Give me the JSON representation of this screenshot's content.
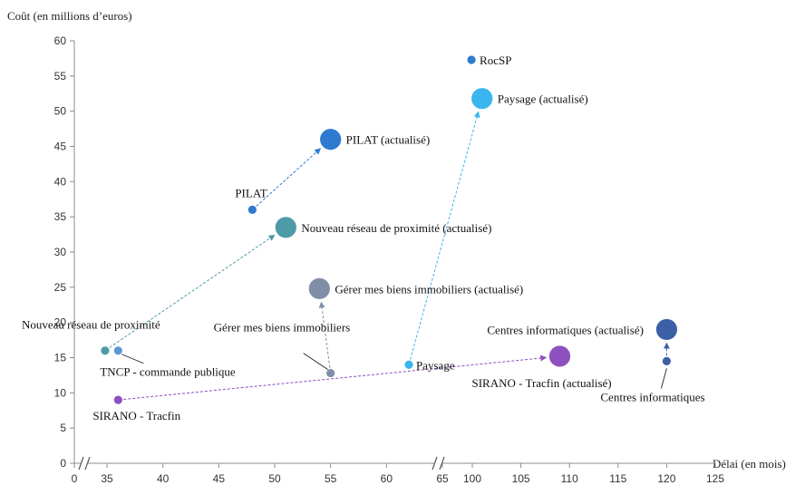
{
  "chart_data": {
    "type": "scatter",
    "xlabel": "Délai (en mois)",
    "ylabel": "Coût (en millions d’euros)",
    "ylim": [
      0,
      60
    ],
    "y_ticks": [
      0,
      5,
      10,
      15,
      20,
      25,
      30,
      35,
      40,
      45,
      50,
      55,
      60
    ],
    "x_ticks": [
      0,
      35,
      40,
      45,
      50,
      55,
      60,
      65,
      100,
      105,
      110,
      115,
      120,
      125
    ],
    "x_axis_breaks": [
      "0-35",
      "65-100"
    ],
    "grid": false,
    "points": [
      {
        "label": "Nouveau réseau de proximité",
        "x": 33,
        "y": 16,
        "size": 5,
        "color": "#4f9aa8"
      },
      {
        "label": "TNCP - commande publique",
        "x": 36,
        "y": 16,
        "size": 5,
        "color": "#5b9bd5"
      },
      {
        "label": "SIRANO - Tracfin",
        "x": 36,
        "y": 9,
        "size": 5,
        "color": "#8e4fbf"
      },
      {
        "label": "PILAT",
        "x": 48,
        "y": 36,
        "size": 5,
        "color": "#2e7ad1"
      },
      {
        "label": "Gérer mes biens immobiliers",
        "x": 55,
        "y": 12.8,
        "size": 5,
        "color": "#7f8fa8"
      },
      {
        "label": "Paysage",
        "x": 62,
        "y": 14,
        "size": 5,
        "color": "#3ab5ee"
      },
      {
        "label": "RocSP",
        "x": 99,
        "y": 57.3,
        "size": 5,
        "color": "#2e7ad1"
      },
      {
        "label": "Centres informatiques",
        "x": 120,
        "y": 14.5,
        "size": 5,
        "color": "#3d5fa8"
      },
      {
        "label": "PILAT (actualisé)",
        "x": 55,
        "y": 46,
        "size": 12,
        "color": "#2e7ad1"
      },
      {
        "label": "Nouveau réseau de proximité (actualisé)",
        "x": 51,
        "y": 33.5,
        "size": 12,
        "color": "#4f9aa8"
      },
      {
        "label": "Gérer mes biens immobiliers (actualisé)",
        "x": 54,
        "y": 24.8,
        "size": 12,
        "color": "#7f8fa8"
      },
      {
        "label": "Paysage (actualisé)",
        "x": 101,
        "y": 51.8,
        "size": 12,
        "color": "#3ab5ee"
      },
      {
        "label": "SIRANO - Tracfin (actualisé)",
        "x": 109,
        "y": 15.2,
        "size": 12,
        "color": "#8e4fbf"
      },
      {
        "label": "Centres informatiques (actualisé)",
        "x": 120,
        "y": 19,
        "size": 12,
        "color": "#3d5fa8"
      }
    ],
    "arrows": [
      {
        "from": "PILAT",
        "to": "PILAT (actualisé)",
        "color": "#2e7ad1"
      },
      {
        "from": "Nouveau réseau de proximité",
        "to": "Nouveau réseau de proximité (actualisé)",
        "color": "#4f9aa8"
      },
      {
        "from": "Gérer mes biens immobiliers",
        "to": "Gérer mes biens immobiliers (actualisé)",
        "color": "#7f8fa8"
      },
      {
        "from": "Paysage",
        "to": "Paysage (actualisé)",
        "color": "#3ab5ee"
      },
      {
        "from": "SIRANO - Tracfin",
        "to": "SIRANO - Tracfin (actualisé)",
        "color": "#8e4fbf"
      },
      {
        "from": "Centres informatiques",
        "to": "Centres informatiques (actualisé)",
        "color": "#3d5fa8"
      }
    ]
  }
}
